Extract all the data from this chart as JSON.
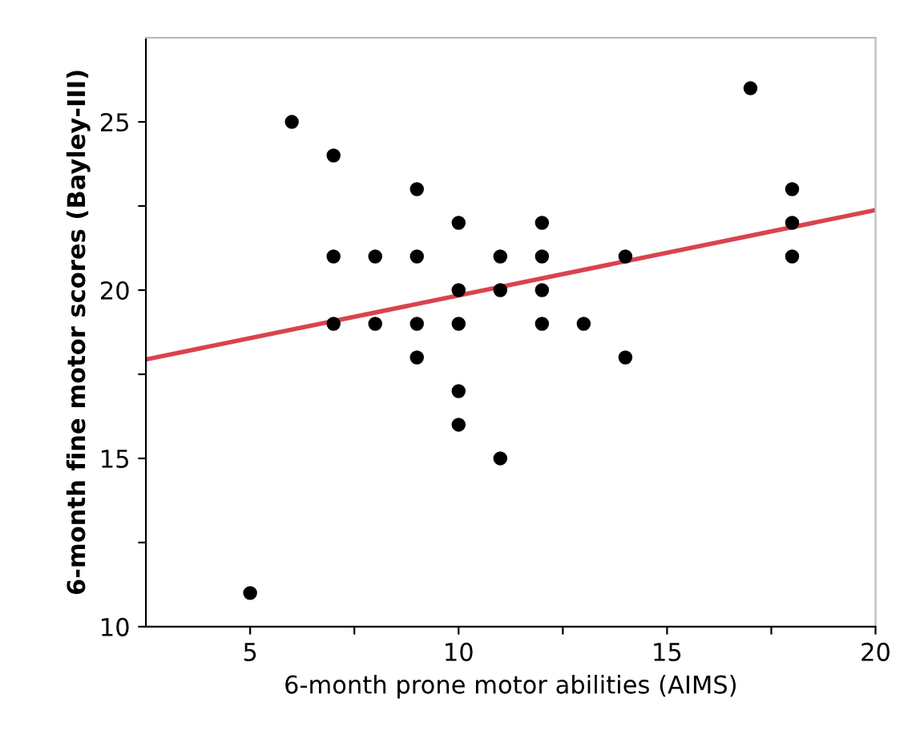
{
  "chart_data": {
    "type": "scatter",
    "xlabel": "6-month prone motor abilities (AIMS)",
    "ylabel": "6-month fine motor scores (Bayley-III)",
    "xlim": [
      2.5,
      20
    ],
    "ylim": [
      10,
      27.5
    ],
    "xticks": [
      5,
      {
        "value": 7.5,
        "label": null
      },
      10,
      {
        "value": 12.5,
        "label": null
      },
      15,
      {
        "value": 17.5,
        "label": null
      },
      20
    ],
    "yticks": [
      10,
      {
        "value": 12.5,
        "label": null
      },
      15,
      {
        "value": 17.5,
        "label": null
      },
      20,
      {
        "value": 22.5,
        "label": null
      },
      25
    ],
    "grid": false,
    "legend": false,
    "series": [
      {
        "marker": "circle",
        "color": "#000000",
        "x": [
          5,
          6,
          7,
          7,
          7,
          8,
          8,
          9,
          9,
          9,
          9,
          10,
          10,
          10,
          10,
          10,
          11,
          11,
          11,
          12,
          12,
          12,
          12,
          13,
          14,
          14,
          17,
          18,
          18,
          18
        ],
        "values": [
          11,
          25,
          24,
          21,
          19,
          21,
          19,
          23,
          21,
          19,
          18,
          22,
          20,
          19,
          17,
          16,
          21,
          20,
          15,
          22,
          21,
          20,
          19,
          19,
          21,
          18,
          26,
          23,
          22,
          21
        ]
      },
      {
        "type": "line",
        "color": "#d9434e",
        "x": [
          2.5,
          20
        ],
        "values": [
          17.94,
          22.38
        ],
        "line_style": "solid",
        "marker": "none"
      }
    ]
  }
}
